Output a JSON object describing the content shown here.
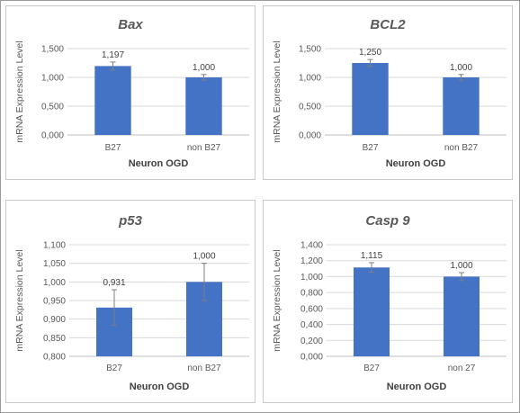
{
  "colors": {
    "bar": "#4472c4",
    "grid": "#d9d9d9",
    "error": "#7f7f7f"
  },
  "chart_data": [
    {
      "type": "bar",
      "title": "Bax",
      "xlabel": "Neuron OGD",
      "ylabel": "mRNA Expression Level",
      "categories": [
        "B27",
        "non B27"
      ],
      "values": [
        1.197,
        1.0
      ],
      "value_labels": [
        "1,197",
        "1,000"
      ],
      "errors": [
        0.07,
        0.05
      ],
      "ylim": [
        0,
        1.5
      ],
      "yticks": [
        0,
        0.5,
        1.0,
        1.5
      ],
      "ytick_labels": [
        "0,000",
        "0,500",
        "1,000",
        "1,500"
      ],
      "grid": true
    },
    {
      "type": "bar",
      "title": "BCL2",
      "xlabel": "Neuron OGD",
      "ylabel": "mRNA Expression Level",
      "categories": [
        "B27",
        "non B27"
      ],
      "values": [
        1.25,
        1.0
      ],
      "value_labels": [
        "1,250",
        "1,000"
      ],
      "errors": [
        0.06,
        0.05
      ],
      "ylim": [
        0,
        1.5
      ],
      "yticks": [
        0,
        0.5,
        1.0,
        1.5
      ],
      "ytick_labels": [
        "0,000",
        "0,500",
        "1,000",
        "1,500"
      ],
      "grid": true
    },
    {
      "type": "bar",
      "title": "p53",
      "xlabel": "Neuron OGD",
      "ylabel": "mRNA Expression Level",
      "categories": [
        "B27",
        "non B27"
      ],
      "values": [
        0.931,
        1.0
      ],
      "value_labels": [
        "0,931",
        "1,000"
      ],
      "errors": [
        0.048,
        0.05
      ],
      "ylim": [
        0.8,
        1.1
      ],
      "yticks": [
        0.8,
        0.85,
        0.9,
        0.95,
        1.0,
        1.05,
        1.1
      ],
      "ytick_labels": [
        "0,800",
        "0,850",
        "0,900",
        "0,950",
        "1,000",
        "1,050",
        "1,100"
      ],
      "grid": true
    },
    {
      "type": "bar",
      "title": "Casp 9",
      "xlabel": "Neuron OGD",
      "ylabel": "mRNA Expression Level",
      "categories": [
        "B27",
        "non 27"
      ],
      "values": [
        1.115,
        1.0
      ],
      "value_labels": [
        "1,115",
        "1,000"
      ],
      "errors": [
        0.06,
        0.05
      ],
      "ylim": [
        0,
        1.4
      ],
      "yticks": [
        0,
        0.2,
        0.4,
        0.6,
        0.8,
        1.0,
        1.2,
        1.4
      ],
      "ytick_labels": [
        "0,000",
        "0,200",
        "0,400",
        "0,600",
        "0,800",
        "1,000",
        "1,200",
        "1,400"
      ],
      "grid": true
    }
  ]
}
